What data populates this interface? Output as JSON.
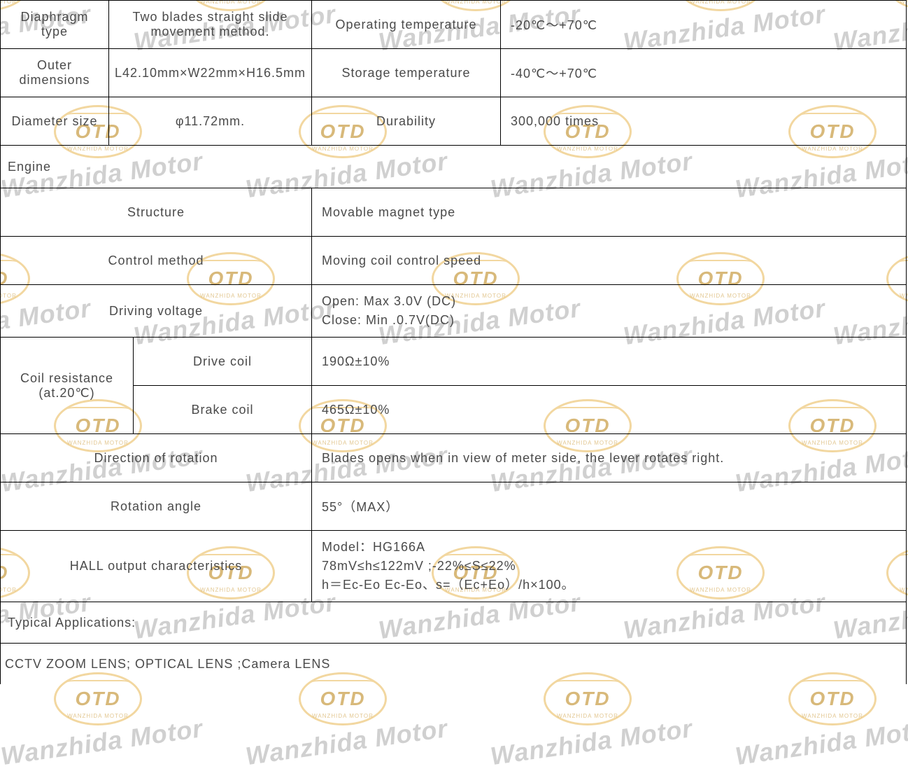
{
  "watermark": {
    "text": "Wanzhida Motor",
    "logo_text": "OTD",
    "logo_sub": "WANZHIDA MOTOR"
  },
  "top": {
    "r1": {
      "l": "Diaphragm type",
      "v": "Two blades straight slide movement method.",
      "l2": "Operating temperature",
      "v2": "-20℃～+70℃"
    },
    "r2": {
      "l": "Outer dimensions",
      "v": "L42.10mm×W22mm×H16.5mm",
      "l2": "Storage temperature",
      "v2": "-40℃～+70℃"
    },
    "r3": {
      "l": "Diameter size",
      "v": "φ11.72mm.",
      "l2": "Durability",
      "v2": "300,000 times"
    }
  },
  "engine_header": "Engine",
  "engine": {
    "structure": {
      "l": "Structure",
      "v": "Movable magnet type"
    },
    "control": {
      "l": "Control method",
      "v": "Moving coil control speed"
    },
    "driving": {
      "l": "Driving voltage",
      "v1": "Open:  Max 3.0V (DC)",
      "v2": "Close: Min .0.7V(DC)"
    },
    "coil_label": "Coil resistance (at.20℃)",
    "drive_coil": {
      "l": "Drive coil",
      "v": "190Ω±10%"
    },
    "brake_coil": {
      "l": "Brake coil",
      "v": "465Ω±10%"
    },
    "direction": {
      "l": "Direction of rotation",
      "v": "Blades opens when in view of meter side, the lever rotates right."
    },
    "rotation": {
      "l": "Rotation angle",
      "v": "55°（MAX）"
    },
    "hall": {
      "l": "HALL output characteristics",
      "v1": "Model：HG166A",
      "v2": "78mV≤h≤122mV ;-22%≤S≤22%",
      "v3": "h＝Ec-Eo Ec-Eo、s=（Ec+Eo）/h×100。"
    }
  },
  "apps": {
    "header": "Typical Applications:",
    "value": "CCTV ZOOM LENS; OPTICAL LENS ;Camera LENS"
  }
}
